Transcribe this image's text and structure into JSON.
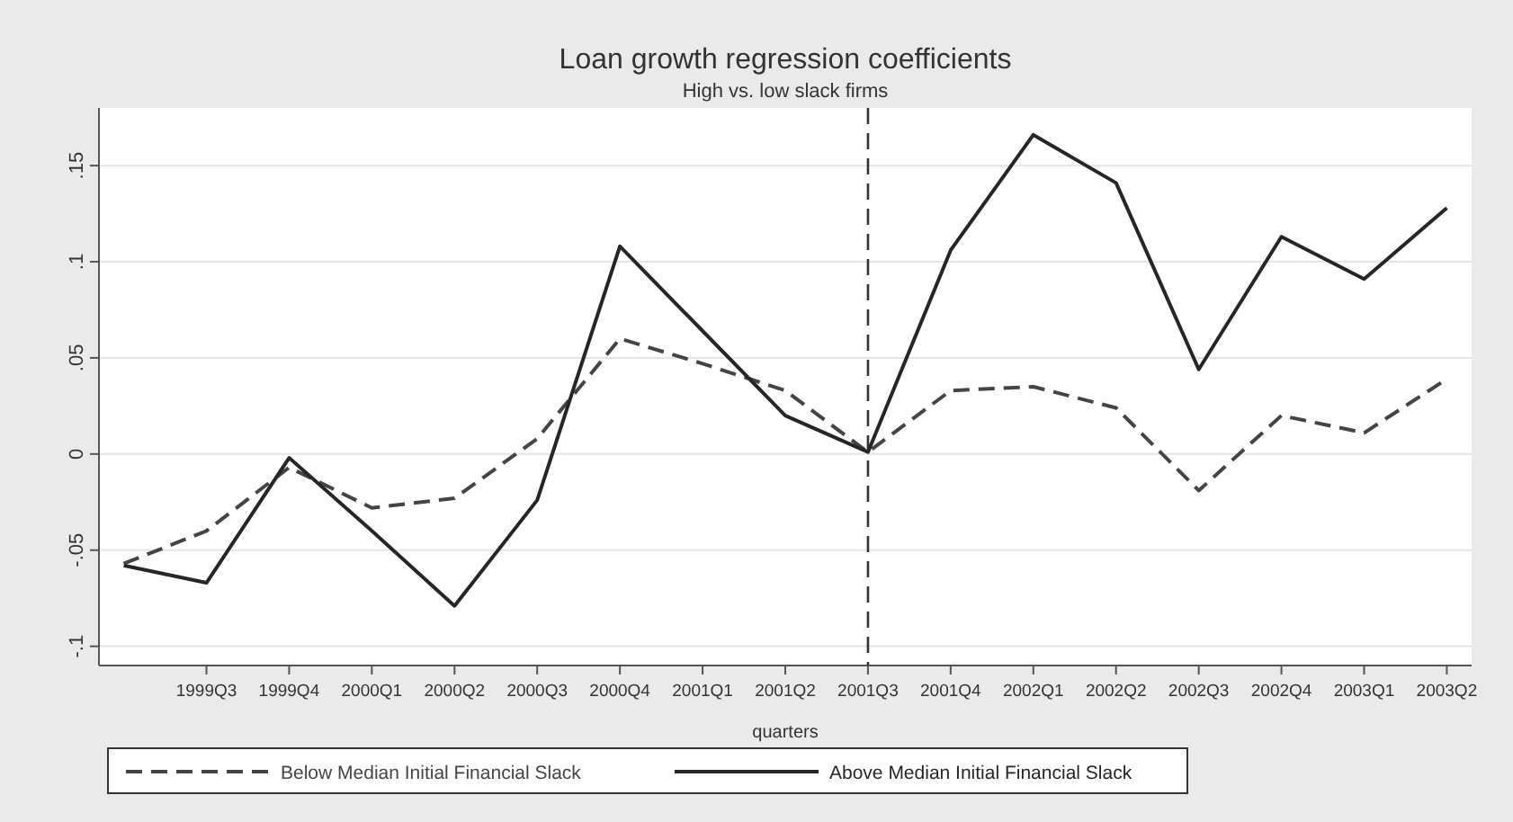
{
  "chart_data": {
    "type": "line",
    "title": "Loan growth regression coefficients",
    "subtitle": "High vs. low slack firms",
    "xlabel": "quarters",
    "categories": [
      null,
      "1999Q3",
      "1999Q4",
      "2000Q1",
      "2000Q2",
      "2000Q3",
      "2000Q4",
      "2001Q1",
      "2001Q2",
      "2001Q3",
      "2001Q4",
      "2002Q1",
      "2002Q2",
      "2002Q3",
      "2002Q4",
      "2003Q1",
      "2003Q2"
    ],
    "series": [
      {
        "name": "Below Median Initial Financial Slack",
        "color": "#444444",
        "line_style": "dashed",
        "values": [
          -0.057,
          -0.04,
          -0.007,
          -0.028,
          -0.023,
          0.008,
          0.06,
          0.047,
          0.033,
          0.001,
          0.033,
          0.035,
          0.024,
          -0.019,
          0.02,
          0.011,
          0.039
        ]
      },
      {
        "name": "Above Median Initial Financial Slack",
        "color": "#262626",
        "line_style": "solid",
        "values": [
          -0.058,
          -0.067,
          -0.002,
          -0.04,
          -0.079,
          -0.024,
          0.108,
          0.064,
          0.02,
          0.001,
          0.106,
          0.166,
          0.141,
          0.044,
          0.113,
          0.091,
          0.128
        ]
      }
    ],
    "ylim": [
      -0.11,
      0.18
    ],
    "yticks": [
      {
        "value": -0.1,
        "label": "-.1"
      },
      {
        "value": -0.05,
        "label": "-.05"
      },
      {
        "value": 0,
        "label": "0"
      },
      {
        "value": 0.05,
        "label": ".05"
      },
      {
        "value": 0.1,
        "label": ".1"
      },
      {
        "value": 0.15,
        "label": ".15"
      }
    ],
    "grid": "y",
    "legend": "bottom",
    "ref_lines": [
      {
        "axis": "x",
        "value": "2001Q3",
        "color": "#333333",
        "line_style": "dashed"
      }
    ]
  }
}
